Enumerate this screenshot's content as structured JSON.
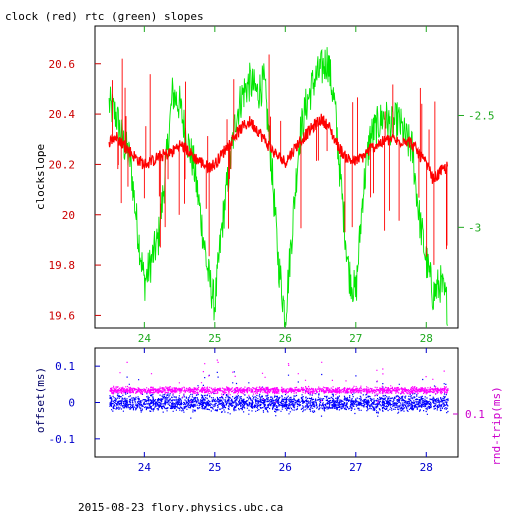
{
  "title": "clock (red) rtc (green) slopes",
  "footer": "2015-08-23 flory.physics.ubc.ca",
  "colors": {
    "clock": "#ff0000",
    "rtc": "#00e600",
    "offset": "#0000ff",
    "roundtrip": "#ff00ff",
    "tick_red": "#cc0000",
    "tick_green": "#1faa1f",
    "tick_blue": "#0000cc",
    "tick_magenta": "#cc00cc"
  },
  "chart_data": [
    {
      "type": "line",
      "panel": "top",
      "ylabel": "clockslope",
      "xlim": [
        23.3,
        28.45
      ],
      "ylim": [
        19.55,
        20.75
      ],
      "y2lim": [
        -3.45,
        -2.1
      ],
      "x_ticks": [
        "24",
        "25",
        "26",
        "27",
        "28"
      ],
      "x_tick_values": [
        24,
        25,
        26,
        27,
        28
      ],
      "y_ticks": [
        "19.6",
        "19.8",
        "20",
        "20.2",
        "20.4",
        "20.6"
      ],
      "y_tick_values": [
        19.6,
        19.8,
        20.0,
        20.2,
        20.4,
        20.6
      ],
      "y2_ticks": [
        "-2.5",
        "-3"
      ],
      "y2_tick_values": [
        -2.5,
        -3.0
      ],
      "series": [
        {
          "color": "red",
          "axis": "left",
          "x": [
            23.5,
            23.6,
            23.7,
            23.8,
            23.9,
            24.0,
            24.1,
            24.2,
            24.3,
            24.4,
            24.5,
            24.6,
            24.7,
            24.8,
            24.9,
            25.0,
            25.1,
            25.2,
            25.3,
            25.4,
            25.5,
            25.6,
            25.7,
            25.8,
            25.9,
            26.0,
            26.1,
            26.2,
            26.3,
            26.4,
            26.5,
            26.6,
            26.7,
            26.8,
            26.9,
            27.0,
            27.1,
            27.2,
            27.3,
            27.4,
            27.5,
            27.6,
            27.7,
            27.8,
            27.9,
            28.0,
            28.1,
            28.2,
            28.3
          ],
          "y": [
            20.29,
            20.31,
            20.28,
            20.25,
            20.22,
            20.2,
            20.21,
            20.23,
            20.24,
            20.25,
            20.28,
            20.26,
            20.23,
            20.21,
            20.19,
            20.2,
            20.24,
            20.28,
            20.32,
            20.35,
            20.37,
            20.34,
            20.3,
            20.26,
            20.23,
            20.21,
            20.25,
            20.29,
            20.32,
            20.35,
            20.38,
            20.36,
            20.3,
            20.25,
            20.22,
            20.21,
            20.23,
            20.26,
            20.28,
            20.29,
            20.3,
            20.29,
            20.3,
            20.28,
            20.24,
            20.2,
            20.14,
            20.17,
            20.19
          ]
        },
        {
          "color": "green",
          "axis": "right",
          "x": [
            23.5,
            23.6,
            23.7,
            23.8,
            23.9,
            24.0,
            24.1,
            24.2,
            24.3,
            24.4,
            24.5,
            24.6,
            24.7,
            24.8,
            24.9,
            25.0,
            25.1,
            25.2,
            25.3,
            25.4,
            25.5,
            25.6,
            25.7,
            25.8,
            25.9,
            26.0,
            26.1,
            26.2,
            26.3,
            26.4,
            26.5,
            26.6,
            26.7,
            26.8,
            26.9,
            27.0,
            27.1,
            27.2,
            27.3,
            27.4,
            27.5,
            27.6,
            27.7,
            27.8,
            27.9,
            28.0,
            28.1,
            28.2,
            28.3
          ],
          "y": [
            -2.45,
            -2.5,
            -2.62,
            -2.7,
            -3.0,
            -3.25,
            -3.15,
            -3.05,
            -2.75,
            -2.4,
            -2.45,
            -2.6,
            -2.72,
            -2.95,
            -3.2,
            -3.35,
            -3.0,
            -2.75,
            -2.5,
            -2.4,
            -2.35,
            -2.4,
            -2.35,
            -2.7,
            -3.15,
            -3.4,
            -3.0,
            -2.6,
            -2.45,
            -2.35,
            -2.3,
            -2.25,
            -2.45,
            -2.85,
            -3.2,
            -3.3,
            -2.85,
            -2.6,
            -2.55,
            -2.5,
            -2.55,
            -2.52,
            -2.6,
            -2.65,
            -2.95,
            -3.15,
            -3.3,
            -3.25,
            -3.35
          ]
        }
      ]
    },
    {
      "type": "scatter",
      "panel": "bottom",
      "ylabel": "offset(ms)",
      "y2label": "rnd-trip(ms)",
      "xlim": [
        23.3,
        28.45
      ],
      "ylim": [
        -0.15,
        0.15
      ],
      "x_ticks": [
        "24",
        "25",
        "26",
        "27",
        "28"
      ],
      "x_tick_values": [
        24,
        25,
        26,
        27,
        28
      ],
      "y_ticks": [
        "-0.1",
        "0",
        "0.1"
      ],
      "y_tick_values": [
        -0.1,
        0.0,
        0.1
      ],
      "y2_ticks": [
        "0.1"
      ],
      "series": [
        {
          "color": "blue",
          "axis": "left",
          "x_range": [
            23.5,
            28.3
          ],
          "center": 0.0,
          "spread": 0.02
        },
        {
          "color": "magenta",
          "axis": "right",
          "x_range": [
            23.5,
            28.3
          ],
          "center": 0.035,
          "spread": 0.008
        }
      ]
    }
  ]
}
